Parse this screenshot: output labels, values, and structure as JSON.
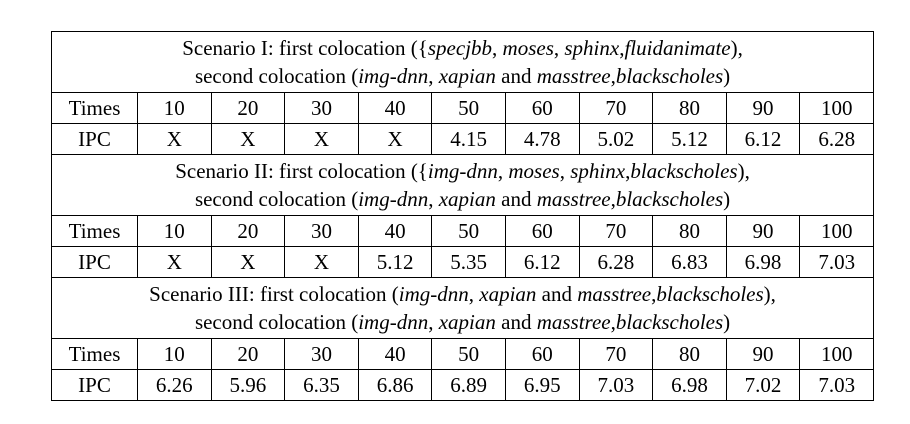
{
  "table": {
    "scenarios": [
      {
        "caption": [
          [
            {
              "t": "Scenario I: first colocation ({",
              "i": false
            },
            {
              "t": "specjbb",
              "i": true
            },
            {
              "t": ", ",
              "i": false
            },
            {
              "t": "moses",
              "i": true
            },
            {
              "t": ", ",
              "i": false
            },
            {
              "t": "sphinx",
              "i": true
            },
            {
              "t": ",",
              "i": false
            },
            {
              "t": "fluidanimate",
              "i": true
            },
            {
              "t": "),",
              "i": false
            }
          ],
          [
            {
              "t": "second colocation (",
              "i": false
            },
            {
              "t": "img-dnn",
              "i": true
            },
            {
              "t": ", ",
              "i": false
            },
            {
              "t": "xapian",
              "i": true
            },
            {
              "t": " and ",
              "i": false
            },
            {
              "t": "masstree",
              "i": true
            },
            {
              "t": ",",
              "i": false
            },
            {
              "t": "blackscholes",
              "i": true
            },
            {
              "t": ")",
              "i": false
            }
          ]
        ],
        "times_label": "Times",
        "times": [
          "10",
          "20",
          "30",
          "40",
          "50",
          "60",
          "70",
          "80",
          "90",
          "100"
        ],
        "ipc_label": "IPC",
        "ipc": [
          "X",
          "X",
          "X",
          "X",
          "4.15",
          "4.78",
          "5.02",
          "5.12",
          "6.12",
          "6.28"
        ]
      },
      {
        "caption": [
          [
            {
              "t": "Scenario II: first colocation ({",
              "i": false
            },
            {
              "t": "img-dnn",
              "i": true
            },
            {
              "t": ", ",
              "i": false
            },
            {
              "t": "moses",
              "i": true
            },
            {
              "t": ", ",
              "i": false
            },
            {
              "t": "sphinx",
              "i": true
            },
            {
              "t": ",",
              "i": false
            },
            {
              "t": "blackscholes",
              "i": true
            },
            {
              "t": "),",
              "i": false
            }
          ],
          [
            {
              "t": "second colocation (",
              "i": false
            },
            {
              "t": "img-dnn",
              "i": true
            },
            {
              "t": ", ",
              "i": false
            },
            {
              "t": "xapian",
              "i": true
            },
            {
              "t": " and ",
              "i": false
            },
            {
              "t": "masstree",
              "i": true
            },
            {
              "t": ",",
              "i": false
            },
            {
              "t": "blackscholes",
              "i": true
            },
            {
              "t": ")",
              "i": false
            }
          ]
        ],
        "times_label": "Times",
        "times": [
          "10",
          "20",
          "30",
          "40",
          "50",
          "60",
          "70",
          "80",
          "90",
          "100"
        ],
        "ipc_label": "IPC",
        "ipc": [
          "X",
          "X",
          "X",
          "5.12",
          "5.35",
          "6.12",
          "6.28",
          "6.83",
          "6.98",
          "7.03"
        ]
      },
      {
        "caption": [
          [
            {
              "t": "Scenario III: first colocation (",
              "i": false
            },
            {
              "t": "img-dnn",
              "i": true
            },
            {
              "t": ", ",
              "i": false
            },
            {
              "t": "xapian",
              "i": true
            },
            {
              "t": " and ",
              "i": false
            },
            {
              "t": "masstree",
              "i": true
            },
            {
              "t": ",",
              "i": false
            },
            {
              "t": "blackscholes",
              "i": true
            },
            {
              "t": "),",
              "i": false
            }
          ],
          [
            {
              "t": "second colocation (",
              "i": false
            },
            {
              "t": "img-dnn",
              "i": true
            },
            {
              "t": ", ",
              "i": false
            },
            {
              "t": "xapian",
              "i": true
            },
            {
              "t": " and ",
              "i": false
            },
            {
              "t": "masstree",
              "i": true
            },
            {
              "t": ",",
              "i": false
            },
            {
              "t": "blackscholes",
              "i": true
            },
            {
              "t": ")",
              "i": false
            }
          ]
        ],
        "times_label": "Times",
        "times": [
          "10",
          "20",
          "30",
          "40",
          "50",
          "60",
          "70",
          "80",
          "90",
          "100"
        ],
        "ipc_label": "IPC",
        "ipc": [
          "6.26",
          "5.96",
          "6.35",
          "6.86",
          "6.89",
          "6.95",
          "7.03",
          "6.98",
          "7.02",
          "7.03"
        ]
      }
    ]
  }
}
